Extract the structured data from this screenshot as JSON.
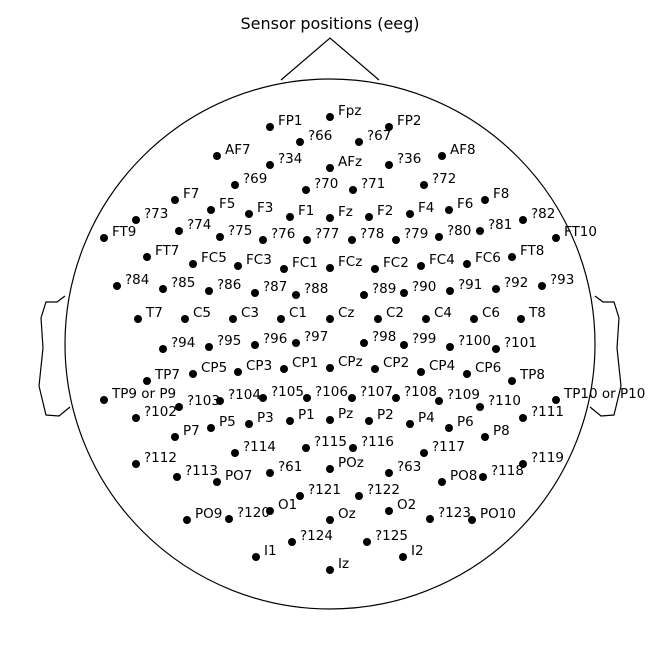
{
  "title": "Sensor positions (eeg)",
  "sensors": [
    "FP1",
    "Fpz",
    "FP2",
    "?66",
    "?67",
    "AF7",
    "?34",
    "AFz",
    "?36",
    "AF8",
    "?69",
    "?70",
    "?71",
    "?72",
    "F7",
    "F5",
    "F3",
    "F1",
    "Fz",
    "F2",
    "F4",
    "F6",
    "F8",
    "?73",
    "?74",
    "?75",
    "?76",
    "?77",
    "?78",
    "?79",
    "?80",
    "?81",
    "?82",
    "FT9",
    "FT10",
    "FT7",
    "FC5",
    "FC3",
    "FC1",
    "FCz",
    "FC2",
    "FC4",
    "FC6",
    "FT8",
    "?84",
    "?85",
    "?86",
    "?87",
    "?88",
    "?89",
    "?90",
    "?91",
    "?92",
    "?93",
    "T7",
    "C5",
    "C3",
    "C1",
    "Cz",
    "C2",
    "C4",
    "C6",
    "T8",
    "?94",
    "?95",
    "?96",
    "?97",
    "?98",
    "?99",
    "?100",
    "?101",
    "TP7",
    "CP5",
    "CP3",
    "CP1",
    "CPz",
    "CP2",
    "CP4",
    "CP6",
    "TP8",
    "TP9 or P9",
    "?103",
    "?104",
    "?105",
    "?106",
    "?107",
    "?108",
    "?109",
    "?110",
    "TP10 or P10",
    "?102",
    "?111",
    "P7",
    "P5",
    "P3",
    "P1",
    "Pz",
    "P2",
    "P4",
    "P6",
    "P8",
    "?114",
    "?115",
    "?116",
    "?117",
    "?112",
    "?119",
    "?113",
    "?61",
    "POz",
    "?63",
    "?118",
    "PO7",
    "PO8",
    "?121",
    "?122",
    "O1",
    "O2",
    "PO9",
    "?120",
    "Oz",
    "?123",
    "PO10",
    "?124",
    "?125",
    "I1",
    "I2",
    "Iz"
  ]
}
